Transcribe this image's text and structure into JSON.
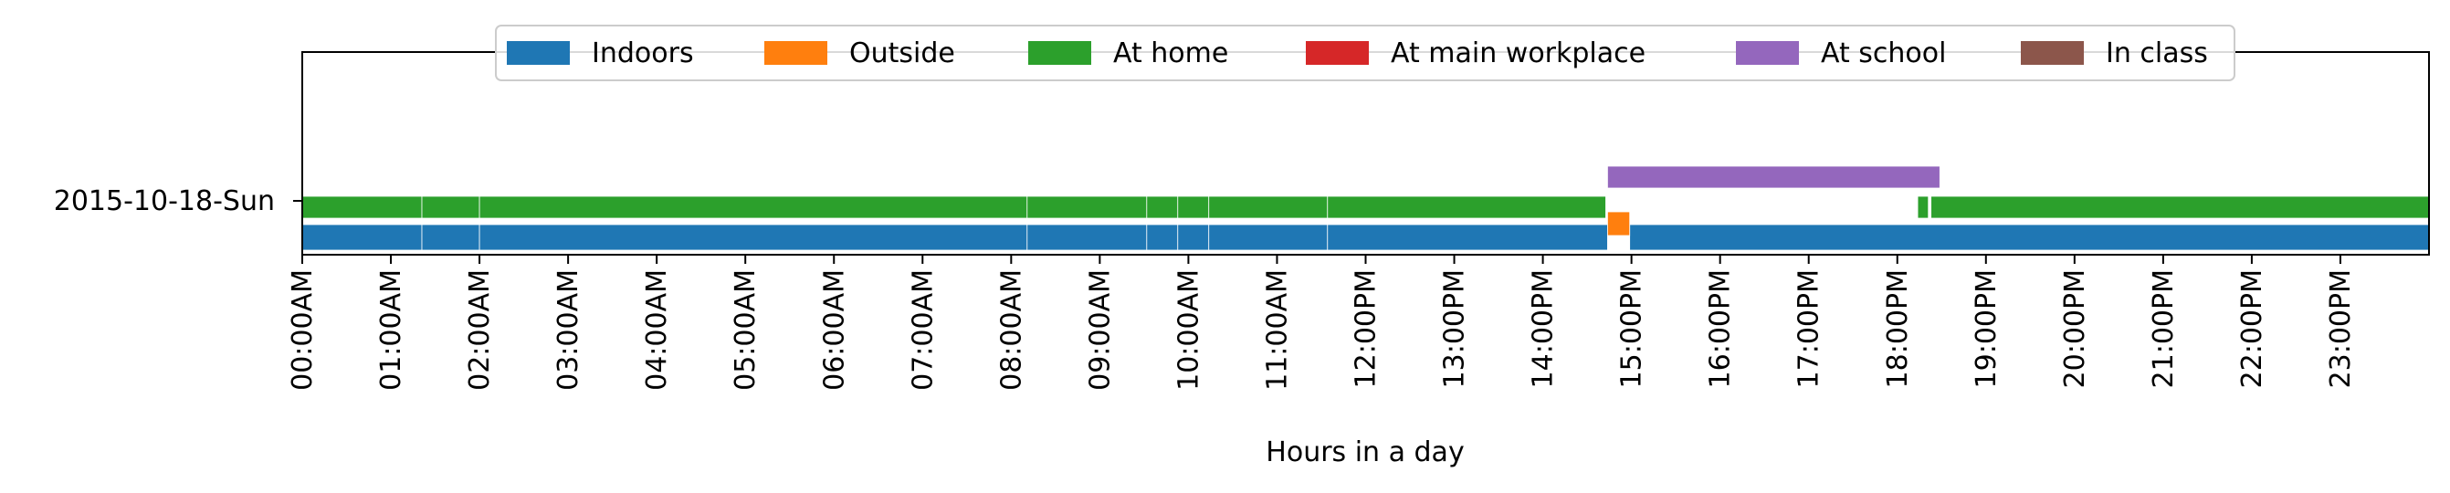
{
  "chart_data": {
    "type": "timeline",
    "xlabel": "Hours in a day",
    "ylabel": "",
    "xlim": [
      0,
      24
    ],
    "x_unit": "hours",
    "x_ticks": [
      "00:00AM",
      "01:00AM",
      "02:00AM",
      "03:00AM",
      "04:00AM",
      "05:00AM",
      "06:00AM",
      "07:00AM",
      "08:00AM",
      "09:00AM",
      "10:00AM",
      "11:00AM",
      "12:00PM",
      "13:00PM",
      "14:00PM",
      "15:00PM",
      "16:00PM",
      "17:00PM",
      "18:00PM",
      "19:00PM",
      "20:00PM",
      "21:00PM",
      "22:00PM",
      "23:00PM"
    ],
    "y_categories": [
      "2015-10-18-Sun"
    ],
    "grid": false,
    "legend_position": "upper center",
    "legend": [
      {
        "name": "Indoors",
        "color": "#1f77b4"
      },
      {
        "name": "Outside",
        "color": "#ff7f0e"
      },
      {
        "name": "At home",
        "color": "#2ca02c"
      },
      {
        "name": "At main workplace",
        "color": "#d62728"
      },
      {
        "name": "At school",
        "color": "#9467bd"
      },
      {
        "name": "In class",
        "color": "#8c564b"
      }
    ],
    "series": [
      {
        "name": "Indoors",
        "color": "#1f77b4",
        "intervals": [
          [
            0,
            1.35
          ],
          [
            1.35,
            2.0
          ],
          [
            2.0,
            8.18
          ],
          [
            8.18,
            9.53
          ],
          [
            9.53,
            9.88
          ],
          [
            9.88,
            10.23
          ],
          [
            10.23,
            11.57
          ],
          [
            11.57,
            14.73
          ],
          [
            14.98,
            24.0
          ]
        ]
      },
      {
        "name": "Outside",
        "color": "#ff7f0e",
        "intervals": [
          [
            14.73,
            14.98
          ]
        ]
      },
      {
        "name": "At home",
        "color": "#2ca02c",
        "intervals": [
          [
            0,
            1.35
          ],
          [
            1.35,
            2.0
          ],
          [
            2.0,
            8.18
          ],
          [
            8.18,
            9.53
          ],
          [
            9.53,
            9.88
          ],
          [
            9.88,
            10.23
          ],
          [
            10.23,
            11.57
          ],
          [
            11.57,
            14.71
          ],
          [
            18.23,
            18.35
          ],
          [
            18.38,
            24.0
          ]
        ]
      },
      {
        "name": "At main workplace",
        "color": "#d62728",
        "intervals": []
      },
      {
        "name": "At school",
        "color": "#9467bd",
        "intervals": [
          [
            14.73,
            18.48
          ]
        ]
      },
      {
        "name": "In class",
        "color": "#8c564b",
        "intervals": []
      }
    ]
  }
}
